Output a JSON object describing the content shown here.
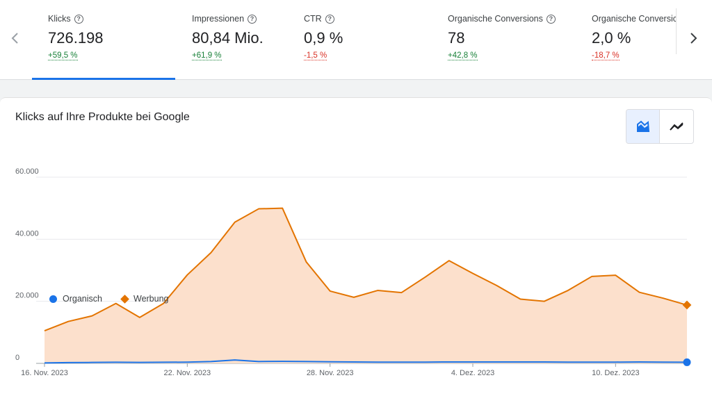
{
  "metrics": [
    {
      "label": "Klicks",
      "value": "726.198",
      "delta": "+59,5 %",
      "positive": true
    },
    {
      "label": "Impressionen",
      "value": "80,84 Mio.",
      "delta": "+61,9 %",
      "positive": true
    },
    {
      "label": "CTR",
      "value": "0,9 %",
      "delta": "-1,5 %",
      "positive": false
    },
    {
      "label": "Organische Conversions",
      "value": "78",
      "delta": "+42,8 %",
      "positive": true
    },
    {
      "label": "Organische Conversic",
      "value": "2,0 %",
      "delta": "-18,7 %",
      "positive": false
    }
  ],
  "icons": {
    "prev": "chevron-left-icon",
    "next": "chevron-right-icon",
    "help": "help-circle-icon",
    "area_chart": "area-chart-icon",
    "line_chart": "line-chart-icon"
  },
  "chart_data": {
    "type": "area",
    "title": "Klicks auf Ihre Produkte bei Google",
    "xlabel": "",
    "ylabel": "",
    "ylim": [
      0,
      60000
    ],
    "y_ticks": [
      "0",
      "20.000",
      "40.000",
      "60.000"
    ],
    "x_ticks": [
      "16. Nov. 2023",
      "22. Nov. 2023",
      "28. Nov. 2023",
      "4. Dez. 2023",
      "10. Dez. 2023"
    ],
    "x": [
      "16.11.2023",
      "17.11.2023",
      "18.11.2023",
      "19.11.2023",
      "20.11.2023",
      "21.11.2023",
      "22.11.2023",
      "23.11.2023",
      "24.11.2023",
      "25.11.2023",
      "26.11.2023",
      "27.11.2023",
      "28.11.2023",
      "29.11.2023",
      "30.11.2023",
      "01.12.2023",
      "02.12.2023",
      "03.12.2023",
      "04.12.2023",
      "05.12.2023",
      "06.12.2023",
      "07.12.2023",
      "08.12.2023",
      "09.12.2023",
      "10.12.2023",
      "11.12.2023",
      "12.12.2023",
      "13.12.2023"
    ],
    "grid": true,
    "legend_position": "bottom-left",
    "series": [
      {
        "name": "Organisch",
        "color": "#1a73e8",
        "values": [
          150,
          250,
          300,
          350,
          300,
          350,
          400,
          600,
          1100,
          600,
          650,
          600,
          500,
          450,
          400,
          400,
          400,
          450,
          450,
          450,
          450,
          450,
          400,
          400,
          400,
          450,
          400,
          350
        ]
      },
      {
        "name": "Werbung",
        "color": "#e37400",
        "fill": "#fce0cc",
        "values": [
          10500,
          13500,
          15300,
          19300,
          14800,
          19300,
          28500,
          35700,
          45500,
          49800,
          50000,
          32700,
          23300,
          21300,
          23500,
          22800,
          27800,
          33100,
          29000,
          25100,
          20700,
          20000,
          23500,
          28000,
          28400,
          22900,
          21000,
          18800
        ]
      }
    ]
  }
}
